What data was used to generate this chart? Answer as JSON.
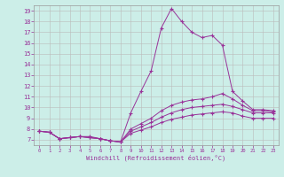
{
  "xlabel": "Windchill (Refroidissement éolien,°C)",
  "bg_color": "#cceee8",
  "line_color": "#993399",
  "grid_color": "#bbbbbb",
  "xlim": [
    -0.5,
    23.5
  ],
  "ylim": [
    6.5,
    19.5
  ],
  "yticks": [
    7,
    8,
    9,
    10,
    11,
    12,
    13,
    14,
    15,
    16,
    17,
    18,
    19
  ],
  "xticks": [
    0,
    1,
    2,
    3,
    4,
    5,
    6,
    7,
    8,
    9,
    10,
    11,
    12,
    13,
    14,
    15,
    16,
    17,
    18,
    19,
    20,
    21,
    22,
    23
  ],
  "lines": [
    {
      "x": [
        0,
        1,
        2,
        3,
        4,
        5,
        6,
        7,
        8,
        9,
        10,
        11,
        12,
        13,
        14,
        15,
        16,
        17,
        18,
        19,
        20,
        21,
        22,
        23
      ],
      "y": [
        7.8,
        7.7,
        7.1,
        7.2,
        7.3,
        7.3,
        7.1,
        6.9,
        6.8,
        9.5,
        11.5,
        13.4,
        17.4,
        19.2,
        18.0,
        17.0,
        16.5,
        16.7,
        15.8,
        11.5,
        10.6,
        9.8,
        9.8,
        9.7
      ]
    },
    {
      "x": [
        0,
        1,
        2,
        3,
        4,
        5,
        6,
        7,
        8,
        9,
        10,
        11,
        12,
        13,
        14,
        15,
        16,
        17,
        18,
        19,
        20,
        21,
        22,
        23
      ],
      "y": [
        7.8,
        7.7,
        7.1,
        7.2,
        7.3,
        7.2,
        7.1,
        6.9,
        6.8,
        8.0,
        8.5,
        9.0,
        9.7,
        10.2,
        10.5,
        10.7,
        10.8,
        11.0,
        11.3,
        10.8,
        10.2,
        9.7,
        9.7,
        9.6
      ]
    },
    {
      "x": [
        0,
        1,
        2,
        3,
        4,
        5,
        6,
        7,
        8,
        9,
        10,
        11,
        12,
        13,
        14,
        15,
        16,
        17,
        18,
        19,
        20,
        21,
        22,
        23
      ],
      "y": [
        7.8,
        7.7,
        7.1,
        7.2,
        7.3,
        7.2,
        7.1,
        6.9,
        6.8,
        7.8,
        8.2,
        8.6,
        9.1,
        9.5,
        9.8,
        10.0,
        10.1,
        10.2,
        10.3,
        10.1,
        9.8,
        9.5,
        9.5,
        9.5
      ]
    },
    {
      "x": [
        0,
        1,
        2,
        3,
        4,
        5,
        6,
        7,
        8,
        9,
        10,
        11,
        12,
        13,
        14,
        15,
        16,
        17,
        18,
        19,
        20,
        21,
        22,
        23
      ],
      "y": [
        7.8,
        7.7,
        7.1,
        7.2,
        7.3,
        7.2,
        7.1,
        6.9,
        6.8,
        7.6,
        7.9,
        8.2,
        8.6,
        8.9,
        9.1,
        9.3,
        9.4,
        9.5,
        9.6,
        9.5,
        9.2,
        9.0,
        9.0,
        9.0
      ]
    }
  ]
}
